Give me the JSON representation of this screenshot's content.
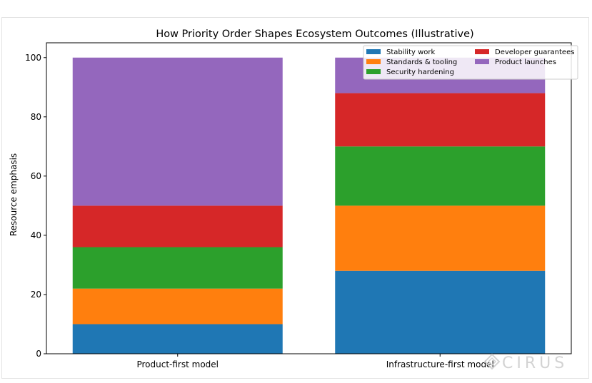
{
  "chart_data": {
    "type": "bar",
    "stacked": true,
    "title": "How Priority Order Shapes Ecosystem Outcomes (Illustrative)",
    "xlabel": "",
    "ylabel": "Resource emphasis",
    "ylim": [
      0,
      105
    ],
    "yticks": [
      0,
      20,
      40,
      60,
      80,
      100
    ],
    "grid": false,
    "legend_position": "top-right",
    "categories": [
      "Product-first model",
      "Infrastructure-first model"
    ],
    "series": [
      {
        "name": "Stability work",
        "color": "#1f77b4",
        "values": [
          10,
          28
        ]
      },
      {
        "name": "Standards & tooling",
        "color": "#ff7f0e",
        "values": [
          12,
          22
        ]
      },
      {
        "name": "Security hardening",
        "color": "#2ca02c",
        "values": [
          14,
          20
        ]
      },
      {
        "name": "Developer guarantees",
        "color": "#d62728",
        "values": [
          14,
          18
        ]
      },
      {
        "name": "Product launches",
        "color": "#9467bd",
        "values": [
          50,
          12
        ]
      }
    ]
  },
  "watermark": {
    "text": "CIRUS",
    "icon": "diamond-logo-icon"
  }
}
